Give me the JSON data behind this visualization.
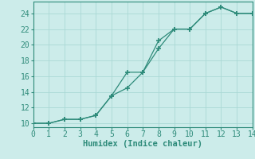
{
  "line1_x": [
    0,
    1,
    2,
    3,
    4,
    5,
    6,
    7,
    8,
    9,
    10,
    11,
    12,
    13,
    14
  ],
  "line1_y": [
    10,
    10,
    10.5,
    10.5,
    11,
    13.5,
    14.5,
    16.5,
    20.5,
    22,
    22,
    24,
    24.8,
    24,
    24
  ],
  "line2_x": [
    0,
    1,
    2,
    3,
    4,
    5,
    6,
    7,
    8,
    9,
    10,
    11,
    12,
    13,
    14
  ],
  "line2_y": [
    10,
    10,
    10.5,
    10.5,
    11,
    13.5,
    16.5,
    16.5,
    19.5,
    22,
    22,
    24,
    24.8,
    24,
    24
  ],
  "line_color": "#2e8b7a",
  "bg_color": "#ccecea",
  "grid_color": "#aad8d5",
  "xlabel": "Humidex (Indice chaleur)",
  "xlim": [
    0,
    14
  ],
  "ylim": [
    9.5,
    25.5
  ],
  "xticks": [
    0,
    1,
    2,
    3,
    4,
    5,
    6,
    7,
    8,
    9,
    10,
    11,
    12,
    13,
    14
  ],
  "yticks": [
    10,
    12,
    14,
    16,
    18,
    20,
    22,
    24
  ],
  "xlabel_fontsize": 7.5,
  "tick_fontsize": 7
}
